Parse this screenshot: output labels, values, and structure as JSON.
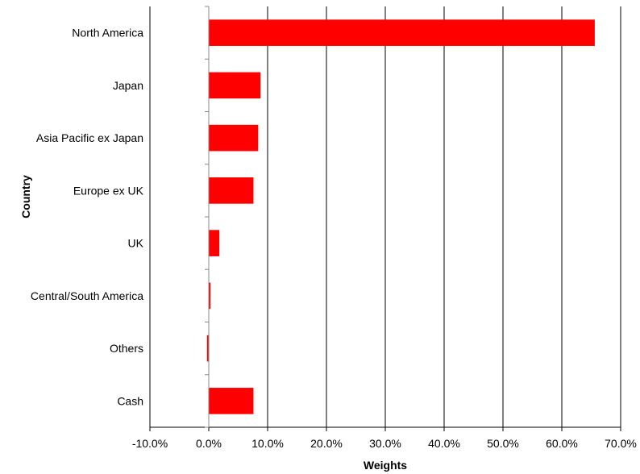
{
  "chart_data": {
    "type": "bar",
    "orientation": "horizontal",
    "title": "",
    "xlabel": "Weights",
    "ylabel": "Country",
    "categories": [
      "North America",
      "Japan",
      "Asia Pacific ex Japan",
      "Europe ex UK",
      "UK",
      "Central/South America",
      "Others",
      "Cash"
    ],
    "values": [
      65.6,
      8.8,
      8.4,
      7.6,
      1.8,
      0.3,
      -0.3,
      7.6
    ],
    "xlim": [
      -10,
      70
    ],
    "xticks": [
      -10,
      0,
      10,
      20,
      30,
      40,
      50,
      60,
      70
    ],
    "xtick_labels": [
      "-10.0%",
      "0.0%",
      "10.0%",
      "20.0%",
      "30.0%",
      "40.0%",
      "50.0%",
      "60.0%",
      "70.0%"
    ],
    "grid": "vertical",
    "legend": "none",
    "bar_color": "#ff0000"
  }
}
